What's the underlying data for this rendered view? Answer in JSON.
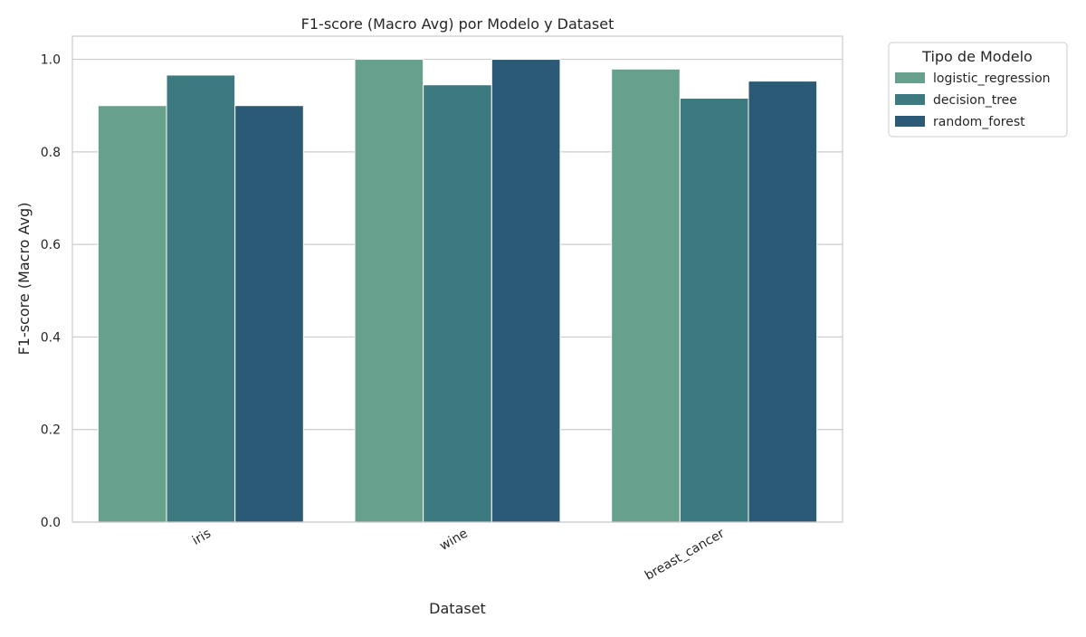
{
  "chart_data": {
    "type": "bar",
    "title": "F1-score (Macro Avg) por Modelo y Dataset",
    "xlabel": "Dataset",
    "ylabel": "F1-score (Macro Avg)",
    "categories": [
      "iris",
      "wine",
      "breast_cancer"
    ],
    "series": [
      {
        "name": "logistic_regression",
        "values": [
          0.9,
          1.0,
          0.979
        ],
        "color": "#67a08c"
      },
      {
        "name": "decision_tree",
        "values": [
          0.966,
          0.945,
          0.916
        ],
        "color": "#3d7a80"
      },
      {
        "name": "random_forest",
        "values": [
          0.9,
          1.0,
          0.953
        ],
        "color": "#2b5a77"
      }
    ],
    "ylim": [
      0,
      1.05
    ],
    "yticks": [
      0.0,
      0.2,
      0.4,
      0.6,
      0.8,
      1.0
    ],
    "ytick_labels": [
      "0.0",
      "0.2",
      "0.4",
      "0.6",
      "0.8",
      "1.0"
    ],
    "grid": true,
    "legend": {
      "title": "Tipo de Modelo",
      "placement": "outside-top-right"
    },
    "colors": {
      "grid": "#cccccc",
      "frame": "#cccccc",
      "text": "#262626"
    }
  }
}
